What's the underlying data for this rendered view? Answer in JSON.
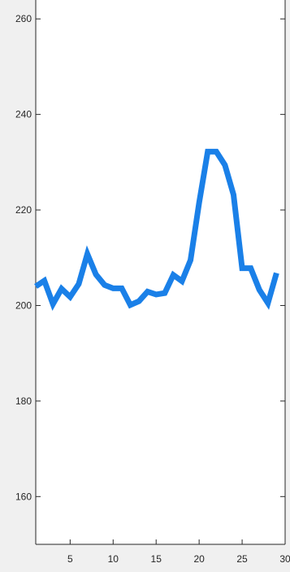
{
  "chart_data": {
    "type": "line",
    "title": "",
    "xlabel": "",
    "ylabel": "",
    "xlim": [
      1,
      30
    ],
    "ylim": [
      150,
      266
    ],
    "xticks": [
      5,
      10,
      15,
      20,
      25,
      30
    ],
    "yticks": [
      160,
      180,
      200,
      220,
      240,
      260
    ],
    "grid": false,
    "legend": "none",
    "series": [
      {
        "color": "#1a80e8",
        "x": [
          1,
          2,
          3,
          4,
          5,
          6,
          7,
          8,
          9,
          10,
          11,
          12,
          13,
          14,
          15,
          16,
          17,
          18,
          19,
          20,
          21,
          22,
          23,
          24,
          25,
          26,
          27,
          28,
          29
        ],
        "y": [
          204,
          205.2,
          200.3,
          203.5,
          201.8,
          204.5,
          210.8,
          206.5,
          204.3,
          203.6,
          203.6,
          200.1,
          200.9,
          202.9,
          202.3,
          202.6,
          206.4,
          205.1,
          209.5,
          221.5,
          232.2,
          232.2,
          229.4,
          223.2,
          207.8,
          207.8,
          203.3,
          200.5,
          206.8
        ]
      }
    ]
  }
}
